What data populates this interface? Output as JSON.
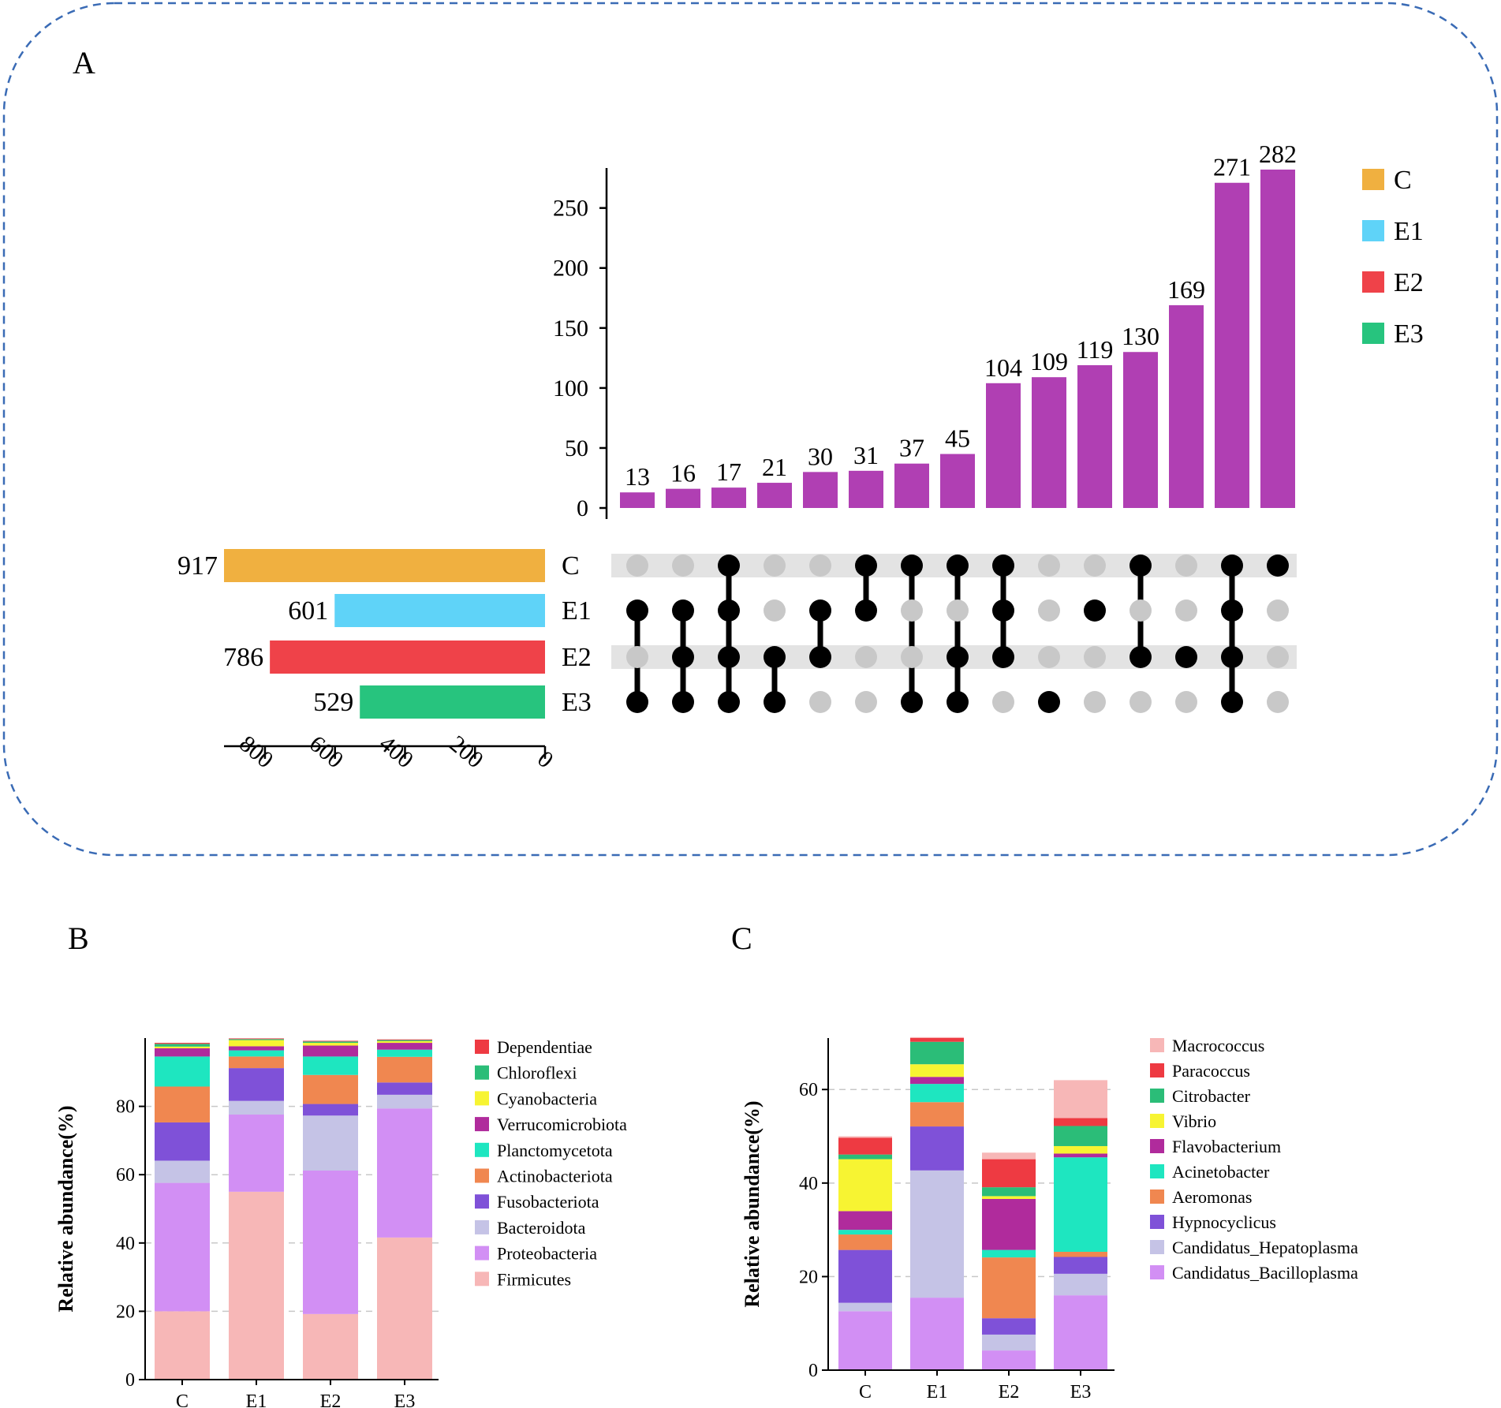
{
  "panel_labels": {
    "a": "A",
    "b": "B",
    "c": "C"
  },
  "colors": {
    "intersection_bar": "#b03fb3",
    "dot_on": "#000000",
    "dot_off": "#c8c8c8",
    "row_band": "#e3e3e3",
    "frame": "#3a6bb5",
    "axis": "#000000"
  },
  "chart_data": [
    {
      "type": "upset",
      "title": "A",
      "sets": [
        "C",
        "E1",
        "E2",
        "E3"
      ],
      "set_sizes": [
        917,
        601,
        786,
        529
      ],
      "set_colors": [
        "#f0b040",
        "#5fd3f8",
        "#ef4249",
        "#27c47e"
      ],
      "set_size_axis": {
        "ticks": [
          800,
          600,
          400,
          200,
          0
        ],
        "max": 917
      },
      "intersection_axis": {
        "ticks": [
          0,
          50,
          100,
          150,
          200,
          250
        ],
        "max": 282
      },
      "intersections": [
        {
          "size": 13,
          "sets": [
            "E1",
            "E3"
          ]
        },
        {
          "size": 16,
          "sets": [
            "E1",
            "E2",
            "E3"
          ]
        },
        {
          "size": 17,
          "sets": [
            "C",
            "E1",
            "E2",
            "E3"
          ]
        },
        {
          "size": 21,
          "sets": [
            "E2",
            "E3"
          ]
        },
        {
          "size": 30,
          "sets": [
            "E1",
            "E2"
          ]
        },
        {
          "size": 31,
          "sets": [
            "C",
            "E1"
          ]
        },
        {
          "size": 37,
          "sets": [
            "C",
            "E3"
          ]
        },
        {
          "size": 45,
          "sets": [
            "C",
            "E2",
            "E3"
          ]
        },
        {
          "size": 104,
          "sets": [
            "C",
            "E1",
            "E2"
          ]
        },
        {
          "size": 109,
          "sets": [
            "E3"
          ]
        },
        {
          "size": 119,
          "sets": [
            "E1"
          ]
        },
        {
          "size": 130,
          "sets": [
            "C",
            "E2"
          ]
        },
        {
          "size": 169,
          "sets": [
            "E2"
          ]
        },
        {
          "size": 271,
          "sets": [
            "C",
            "E1",
            "E2",
            "E3"
          ]
        },
        {
          "size": 282,
          "sets": [
            "C"
          ]
        }
      ],
      "legend": [
        "C",
        "E1",
        "E2",
        "E3"
      ]
    },
    {
      "type": "stacked_bar",
      "title": "B",
      "ylabel": "Relative abundance(%)",
      "ylim": [
        0,
        100
      ],
      "yticks": [
        0,
        20,
        40,
        60,
        80
      ],
      "categories": [
        "C",
        "E1",
        "E2",
        "E3"
      ],
      "series": [
        {
          "name": "Firmicutes",
          "color": "#f7b7b7",
          "values": [
            20,
            55,
            19.2,
            41.6
          ]
        },
        {
          "name": "Proteobacteria",
          "color": "#d28ff4",
          "values": [
            37.6,
            22.6,
            42,
            37.8
          ]
        },
        {
          "name": "Bacteroidota",
          "color": "#c5c3e6",
          "values": [
            6.5,
            4,
            16.1,
            4
          ]
        },
        {
          "name": "Fusobacteriota",
          "color": "#7f51d8",
          "values": [
            11.2,
            9.6,
            3.4,
            3.6
          ]
        },
        {
          "name": "Actinobacteriota",
          "color": "#f08750",
          "values": [
            10.5,
            3.4,
            8.5,
            7.5
          ]
        },
        {
          "name": "Planctomycetota",
          "color": "#1ee6c0",
          "values": [
            8.8,
            1.8,
            5.4,
            2.1
          ]
        },
        {
          "name": "Verrucomicrobiota",
          "color": "#b02b9c",
          "values": [
            2.4,
            1.2,
            3.2,
            2
          ]
        },
        {
          "name": "Cyanobacteria",
          "color": "#f7f432",
          "values": [
            0.5,
            1.8,
            0.8,
            0.5
          ]
        },
        {
          "name": "Chloroflexi",
          "color": "#2bbd78",
          "values": [
            0.8,
            0.3,
            0.4,
            0.3
          ]
        },
        {
          "name": "Dependentiae",
          "color": "#ee3a42",
          "values": [
            0.3,
            0.2,
            0.2,
            0.2
          ]
        }
      ],
      "legend_order": [
        "Dependentiae",
        "Chloroflexi",
        "Cyanobacteria",
        "Verrucomicrobiota",
        "Planctomycetota",
        "Actinobacteriota",
        "Fusobacteriota",
        "Bacteroidota",
        "Proteobacteria",
        "Firmicutes"
      ]
    },
    {
      "type": "stacked_bar",
      "title": "C",
      "ylabel": "Relative abundance(%)",
      "ylim": [
        0,
        71
      ],
      "yticks": [
        0,
        20,
        40,
        60
      ],
      "categories": [
        "C",
        "E1",
        "E2",
        "E3"
      ],
      "series": [
        {
          "name": "Candidatus_Bacilloplasma",
          "color": "#d28ff4",
          "values": [
            12.6,
            15.5,
            4.2,
            16
          ]
        },
        {
          "name": "Candidatus_Hepatoplasma",
          "color": "#c5c3e6",
          "values": [
            1.8,
            27.2,
            3.4,
            4.6
          ]
        },
        {
          "name": "Hypnocyclicus",
          "color": "#7f51d8",
          "values": [
            11.3,
            9.4,
            3.5,
            3.6
          ]
        },
        {
          "name": "Aeromonas",
          "color": "#f08750",
          "values": [
            3.3,
            5.2,
            13,
            1.1
          ]
        },
        {
          "name": "Acinetobacter",
          "color": "#1ee6c0",
          "values": [
            1,
            3.9,
            1.6,
            20.2
          ]
        },
        {
          "name": "Flavobacterium",
          "color": "#b02b9c",
          "values": [
            4,
            1.5,
            10.9,
            0.8
          ]
        },
        {
          "name": "Vibrio",
          "color": "#f7f432",
          "values": [
            11.1,
            2.7,
            0.6,
            1.6
          ]
        },
        {
          "name": "Citrobacter",
          "color": "#2bbd78",
          "values": [
            1,
            4.8,
            1.9,
            4.3
          ]
        },
        {
          "name": "Paracoccus",
          "color": "#ee3a42",
          "values": [
            3.6,
            0.8,
            6,
            1.7
          ]
        },
        {
          "name": "Macrococcus",
          "color": "#f7b7b7",
          "values": [
            0.3,
            0.2,
            1.4,
            8.1
          ]
        }
      ],
      "legend_order": [
        "Macrococcus",
        "Paracoccus",
        "Citrobacter",
        "Vibrio",
        "Flavobacterium",
        "Acinetobacter",
        "Aeromonas",
        "Hypnocyclicus",
        "Candidatus_Hepatoplasma",
        "Candidatus_Bacilloplasma"
      ]
    }
  ]
}
